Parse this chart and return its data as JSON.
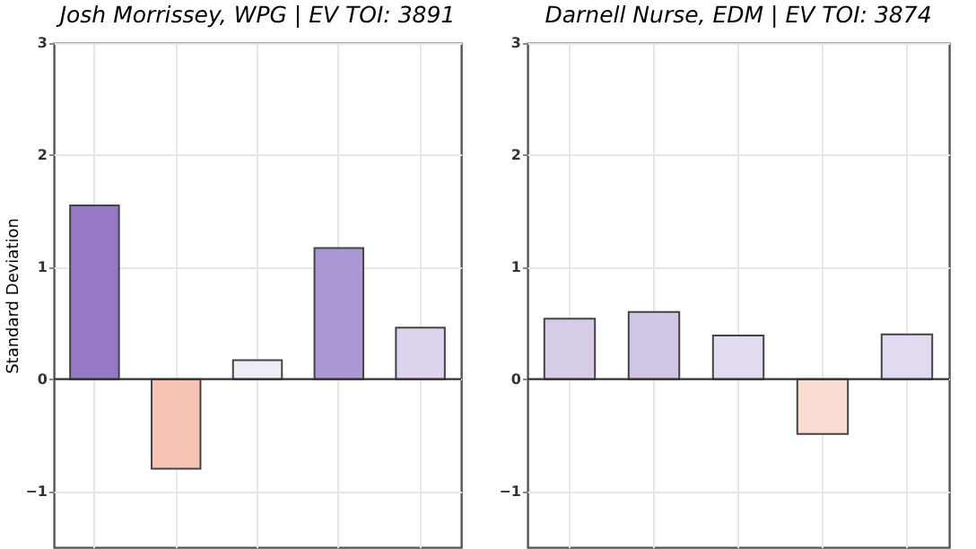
{
  "chart_data": [
    {
      "type": "bar",
      "title": "Josh Morrissey, WPG  |  EV TOI: 3891",
      "ylabel": "Standard Deviation",
      "categories": [
        null,
        null,
        null,
        null,
        null
      ],
      "values": [
        1.55,
        -0.8,
        0.17,
        1.17,
        0.46
      ],
      "colors": [
        "#9678c4",
        "#f5c4b4",
        "#f0ecf6",
        "#ad98d6",
        "#ddd3ec"
      ],
      "ylim": [
        -1.5,
        3
      ],
      "yticks": [
        -1,
        0,
        1,
        2,
        3
      ],
      "grid": true,
      "ref_lines": [
        {
          "axis": "y",
          "value": 0,
          "color": "#333333"
        }
      ]
    },
    {
      "type": "bar",
      "title": "Darnell Nurse, EDM  |  EV TOI: 3874",
      "categories": [
        null,
        null,
        null,
        null,
        null
      ],
      "values": [
        0.54,
        0.6,
        0.39,
        -0.49,
        0.4
      ],
      "colors": [
        "#d6cce8",
        "#d2c6e6",
        "#e2daf0",
        "#f8dcd2",
        "#e2daf0"
      ],
      "ylim": [
        -1.5,
        3
      ],
      "yticks": [
        -1,
        0,
        1,
        2,
        3
      ],
      "grid": true,
      "ref_lines": [
        {
          "axis": "y",
          "value": 0,
          "color": "#333333"
        }
      ]
    }
  ]
}
